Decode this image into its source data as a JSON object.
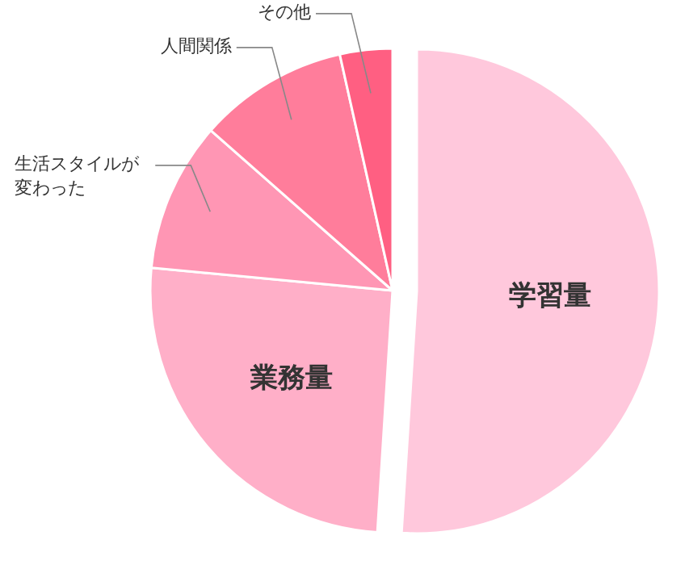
{
  "chart_data": {
    "type": "pie",
    "categories": [
      "学習量",
      "業務量",
      "生活スタイルが変わった",
      "人間関係",
      "その他"
    ],
    "values": [
      51,
      25.5,
      10,
      10,
      3.5
    ],
    "colors": [
      "#ffc8dc",
      "#ffafc8",
      "#ff96b4",
      "#ff7d9b",
      "#ff5f82"
    ]
  }
}
